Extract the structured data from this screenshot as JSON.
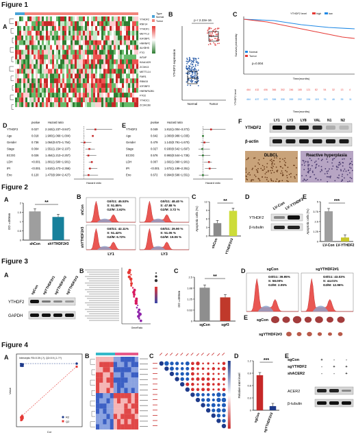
{
  "figure1": {
    "title": "Figure 1",
    "panels": [
      "A",
      "B",
      "C",
      "D",
      "E",
      "F"
    ],
    "heatmap_genes": [
      "YTHDF2",
      "RNF14",
      "YTHDF1",
      "METTL3",
      "IGF2BP1",
      "HNRNPC",
      "ALKBH5",
      "FTO",
      "WTAP",
      "KIAA1429",
      "ZC3H13",
      "METTL14",
      "FMR1",
      "RBM15",
      "IGF2BP2",
      "HNRNPA2B1",
      "FTO2",
      "YTHDC1",
      "ZC3H13B"
    ],
    "heatmap_legend": {
      "title": "Type",
      "items": [
        "Normal",
        "Tumor"
      ],
      "colors": [
        "#4aa3d8",
        "#f2847b"
      ]
    },
    "boxplot": {
      "title": "p < 2.22e-16",
      "ylabel": "YTHDF2 expression",
      "groups": [
        "Normal",
        "Tumor"
      ]
    },
    "survival": {
      "legend_title": "YTHDF2 level",
      "groups": [
        "high",
        "low"
      ],
      "pvalue": "p=0.004",
      "xlabel": "Time(months)",
      "ylabel": "Survival probability",
      "table_label": "YTHDF2 level"
    },
    "forest_D": {
      "headers": [
        "pvalue",
        "Hazard ratio"
      ],
      "rows": [
        {
          "var": "YTHDF2",
          "p": "0.027",
          "hr": "2.163(1.237~3.847)"
        },
        {
          "var": "Age",
          "p": "0.018",
          "hr": "1.900(1.066~1.004)"
        },
        {
          "var": "Gender",
          "p": "0.736",
          "hr": "1.064(0.673~1.754)"
        },
        {
          "var": "Stage",
          "p": "0.004",
          "hr": "1.551(1.154~2.107)"
        },
        {
          "var": "ECOG",
          "p": "0.026",
          "hr": "1.454(1.213~2.257)"
        },
        {
          "var": "LDH",
          "p": "<0.001",
          "hr": "1.801(1.500~1.901)"
        },
        {
          "var": "IPI",
          "p": "<0.001",
          "hr": "1.610(1.473~2.356)"
        },
        {
          "var": "Eno",
          "p": "0.120",
          "hr": "1.473(0.904~2.427)"
        }
      ],
      "xlabel": "Hazard ratio"
    },
    "forest_E": {
      "headers": [
        "pvalue",
        "Hazard ratio"
      ],
      "rows": [
        {
          "var": "YTHDF2",
          "p": "0.049",
          "hr": "1.812(1.004~3.272)"
        },
        {
          "var": "Age",
          "p": "0.642",
          "hr": "1.000(0.986~1.035)"
        },
        {
          "var": "Gender",
          "p": "0.479",
          "hr": "1.143(0.791~1.670)"
        },
        {
          "var": "Stage",
          "p": "0.027",
          "hr": "0.930(0.542~1.697)"
        },
        {
          "var": "ECOG",
          "p": "0.576",
          "hr": "0.993(0.544~1.735)"
        },
        {
          "var": "LDH",
          "p": "0.007",
          "hr": "1.602(1.090~1.901)"
        },
        {
          "var": "IPI",
          "p": "<0.001",
          "hr": "1.672(1.199~2.351)"
        },
        {
          "var": "Eno",
          "p": "0.672",
          "hr": "0.994(0.596~1.551)"
        }
      ],
      "xlabel": "Hazard ratio"
    },
    "blot_F": {
      "lanes": [
        "LY1",
        "LY3",
        "LY8",
        "VAL",
        "N1",
        "N2"
      ],
      "rows": [
        "YTHDF2",
        "β-actin"
      ]
    },
    "ihc_F": {
      "left": "DLBCL",
      "right": "Reactive hyperplasia"
    }
  },
  "figure2": {
    "title": "Figure 2",
    "panelA": {
      "ylabel": "OD =450nm",
      "groups": [
        "shCon",
        "shYTHDF2#3"
      ],
      "sig": "**"
    },
    "panelB": {
      "rows": [
        "shCon",
        "shYTHDF2#3"
      ],
      "cols": [
        "LY1",
        "LY3"
      ],
      "stats": [
        [
          "G0/G1: 45.53%",
          "S: 51.85%",
          "G2/M: 2.62%"
        ],
        [
          "G0/G1: 48.40 %",
          "S: 47.88 %",
          "G2/M: 3.72 %"
        ],
        [
          "G0/G1: 42.11%",
          "S: 51.42%",
          "G2/M: 6.72%"
        ],
        [
          "G0/G1: 29.90 %",
          "S: 51.05 %",
          "G2/M: 19.06 %"
        ]
      ]
    },
    "panelC": {
      "ylabel": "Apoptotic cells (%)",
      "groups": [
        "shCon",
        "shYTHDF2#3"
      ],
      "sig": "**"
    },
    "panelD": {
      "lanes": [
        "LV-Con",
        "LV-YTHDF2"
      ],
      "rows": [
        "YTHDF2",
        "β-tubulin"
      ]
    },
    "panelE": {
      "ylabel": "Apoptotic cells (%)",
      "groups": [
        "LV-Con",
        "LV-YTHDF2"
      ],
      "sig": "***"
    }
  },
  "figure3": {
    "title": "Figure 3",
    "panelA": {
      "lanes": [
        "sgCon",
        "sgYTHDF2#1",
        "sgYTHDF2#2",
        "sgYTHDF2#3"
      ],
      "rows": [
        "YTHDF2",
        "GAPDH"
      ]
    },
    "panelB": {
      "xlabel": "GeneRatio"
    },
    "panelC": {
      "ylabel": "OD =450nm",
      "groups": [
        "sgCon",
        "sg#3"
      ],
      "sig": "**"
    },
    "panelD": {
      "cols": [
        "sgCon",
        "sgYTHDF2#1"
      ],
      "stats": [
        [
          "G0/G1: 39.95%",
          "S: 58.00%",
          "G2/M: 2.05%"
        ],
        [
          "G0/G1: 43.03%",
          "S: 44.01%",
          "G2/M: 12.96%"
        ]
      ]
    },
    "panelE": {
      "rows": [
        "sgCon",
        "sgYTHDF2#3"
      ]
    }
  },
  "figure4": {
    "title": "Figure 4",
    "panelA": {
      "xlabel": "Cor",
      "ylabel": "Value",
      "annotation": "Intercepts: R0=0.39 (-?), Q2=0.9 (-1.??)",
      "legend": [
        "R2",
        "Q2"
      ]
    },
    "panelD": {
      "ylabel": "Relative m6A level",
      "groups": [
        "sgCon",
        "sgYTHDF2#3"
      ],
      "sig": "***"
    },
    "panelE": {
      "conditions": [
        {
          "label": "sgCon",
          "marks": [
            "+",
            "-",
            "-"
          ]
        },
        {
          "label": "sgYTHDF2",
          "marks": [
            "-",
            "+",
            "+"
          ]
        },
        {
          "label": "shACER2",
          "marks": [
            "-",
            "-",
            "+"
          ]
        }
      ],
      "rows": [
        "ACER2",
        "β-tubulin"
      ]
    }
  },
  "chart_data": [
    {
      "type": "bar",
      "name": "fig2A",
      "categories": [
        "shCon",
        "shYTHDF2#3"
      ],
      "values": [
        1.55,
        1.25
      ],
      "ylim": [
        0,
        2.0
      ],
      "ylabel": "OD =450nm"
    },
    {
      "type": "bar",
      "name": "fig2C",
      "categories": [
        "shCon",
        "shYTHDF2#3"
      ],
      "values": [
        4.5,
        8.8
      ],
      "ylim": [
        0,
        12
      ],
      "ylabel": "Apoptotic cells (%)"
    },
    {
      "type": "bar",
      "name": "fig2E",
      "categories": [
        "LV-Con",
        "LV-YTHDF2"
      ],
      "values": [
        3.8,
        0.5
      ],
      "ylim": [
        0,
        5
      ],
      "ylabel": "Apoptotic cells (%)"
    },
    {
      "type": "bar",
      "name": "fig3C",
      "categories": [
        "sgCon",
        "sg#3"
      ],
      "values": [
        1.9,
        1.35
      ],
      "ylim": [
        0,
        2.5
      ],
      "ylabel": "OD =450nm"
    },
    {
      "type": "bar",
      "name": "fig4D",
      "categories": [
        "sgCon",
        "sgYTHDF2#3"
      ],
      "values": [
        0.85,
        0.1
      ],
      "ylim": [
        0,
        1.2
      ],
      "ylabel": "Relative m6A level"
    }
  ]
}
